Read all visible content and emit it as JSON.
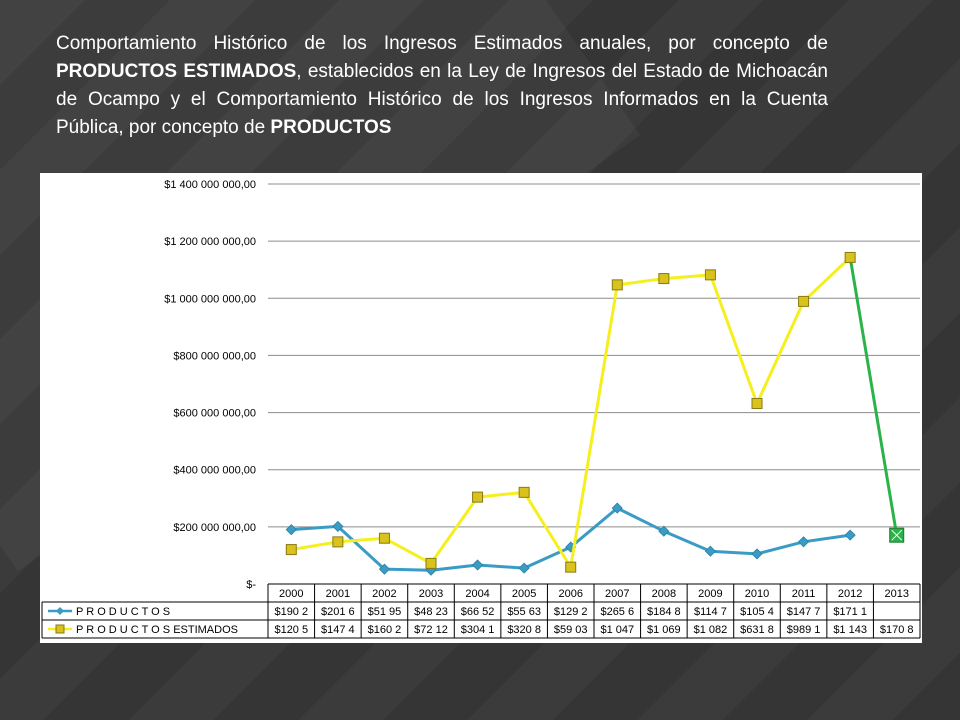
{
  "slide": {
    "title_part1": "Comportamiento Histórico de los Ingresos Estimados anuales, por concepto de ",
    "title_bold1": "PRODUCTOS ESTIMADOS",
    "title_part2": ", establecidos en la Ley de Ingresos del Estado de Michoacán de Ocampo y el Comportamiento Histórico de los Ingresos Informados en la Cuenta Pública, por concepto de ",
    "title_bold2": "PRODUCTOS"
  },
  "chart_data": {
    "type": "line",
    "title": "",
    "xlabel": "",
    "ylabel": "",
    "ylim": [
      0,
      1400000000
    ],
    "y_ticks": [
      0,
      200000000,
      400000000,
      600000000,
      800000000,
      1000000000,
      1200000000,
      1400000000
    ],
    "y_tick_labels": [
      "$-",
      "$200 000 000,00",
      "$400 000 000,00",
      "$600 000 000,00",
      "$800 000 000,00",
      "$1 000 000 000,00",
      "$1 200 000 000,00",
      "$1 400 000 000,00"
    ],
    "grid": true,
    "legend": "data-table-below",
    "categories": [
      "2000",
      "2001",
      "2002",
      "2003",
      "2004",
      "2005",
      "2006",
      "2007",
      "2008",
      "2009",
      "2010",
      "2011",
      "2012",
      "2013"
    ],
    "series": [
      {
        "name": "P R O D U C T O S",
        "color": "#3a9cc4",
        "marker": "diamond",
        "values": [
          190200000,
          201600000,
          51950000,
          48230000,
          66520000,
          55630000,
          129200000,
          265600000,
          184800000,
          114700000,
          105400000,
          147700000,
          171100000,
          null
        ],
        "table_labels": [
          "$190 2",
          "$201 6",
          "$51 95",
          "$48 23",
          "$66 52",
          "$55 63",
          "$129 2",
          "$265 6",
          "$184 8",
          "$114 7",
          "$105 4",
          "$147 7",
          "$171 1",
          ""
        ]
      },
      {
        "name": "P R O D U C T O S ESTIMADOS",
        "color": "#f5ef1d",
        "marker": "square",
        "values": [
          120500000,
          147400000,
          160200000,
          72120000,
          304100000,
          320800000,
          59030000,
          1047000000,
          1069000000,
          1082000000,
          631800000,
          989100000,
          1143000000,
          170800000
        ],
        "table_labels": [
          "$120 5",
          "$147 4",
          "$160 2",
          "$72 12",
          "$304 1",
          "$320 8",
          "$59 03",
          "$1 047",
          "$1 069",
          "$1 082",
          "$631 8",
          "$989 1",
          "$1 143",
          "$170 8"
        ],
        "last_segment_color": "#2bb34a"
      }
    ]
  }
}
